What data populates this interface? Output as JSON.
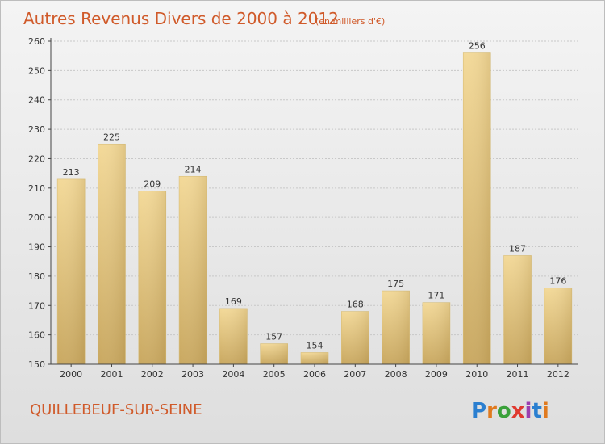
{
  "chart_data": {
    "type": "bar",
    "title": "Autres Revenus Divers de 2000 à 2012",
    "subtitle": "(en milliers d'€)",
    "categories": [
      "2000",
      "2001",
      "2002",
      "2003",
      "2004",
      "2005",
      "2006",
      "2007",
      "2008",
      "2009",
      "2010",
      "2011",
      "2012"
    ],
    "values": [
      213,
      225,
      209,
      214,
      169,
      157,
      154,
      168,
      175,
      171,
      256,
      187,
      176
    ],
    "ylim": [
      150,
      260
    ],
    "yticks": [
      150,
      160,
      170,
      180,
      190,
      200,
      210,
      220,
      230,
      240,
      250,
      260
    ],
    "grid": true,
    "xlabel": "",
    "ylabel": "",
    "bar_color": "#e8c878"
  },
  "footer": {
    "commune": "QUILLEBEUF-SUR-SEINE",
    "brand": "Proxiti"
  },
  "colors": {
    "title": "#d05a2a",
    "brand_letters": [
      "#2b7fd0",
      "#e07a1f",
      "#3aa13a",
      "#e03a2f",
      "#9b3fb0",
      "#2b7fd0",
      "#e07a1f"
    ]
  }
}
